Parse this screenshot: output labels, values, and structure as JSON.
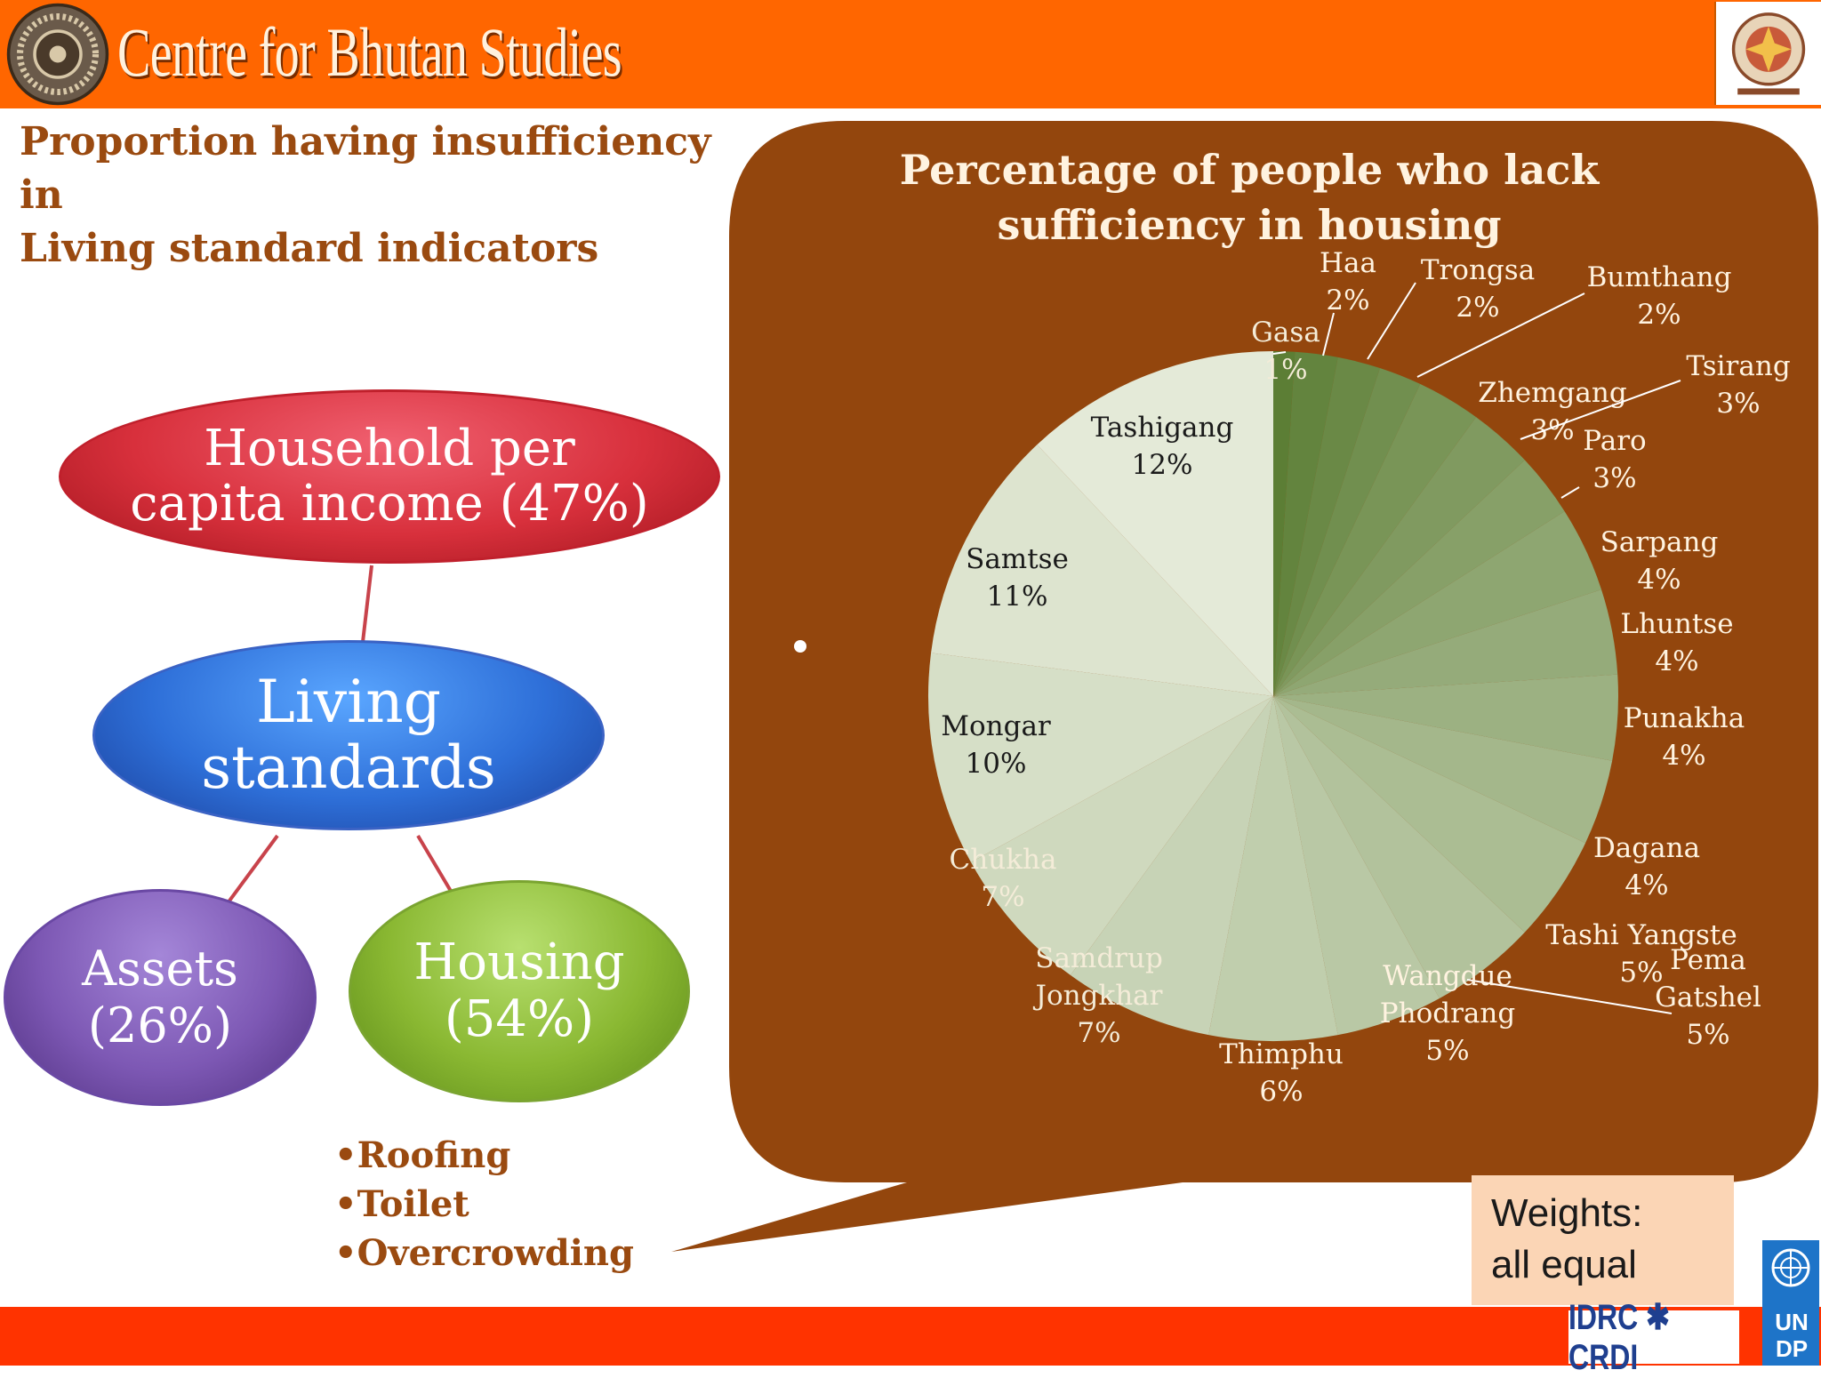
{
  "header": {
    "brand": "Centre for Bhutan Studies",
    "bar_color": "#ff6600",
    "logo_icon": "dharma-wheel-icon",
    "emblem_icon": "bhutan-emblem-icon"
  },
  "heading": {
    "line1": "Proportion having insufficiency in",
    "line2": "Living standard indicators"
  },
  "hierarchy": {
    "income": {
      "line1": "Household per",
      "line2": "capita income (47%)"
    },
    "living": {
      "line1": "Living",
      "line2": "standards"
    },
    "assets": {
      "line1": "Assets",
      "line2": "(26%)"
    },
    "housing": {
      "line1": "Housing",
      "line2": "(54%)"
    }
  },
  "housing_items": [
    "•Roofing",
    "•Toilet",
    "•Overcrowding"
  ],
  "bullet": "•",
  "weights": {
    "line1": "Weights:",
    "line2": "all equal"
  },
  "sponsors": {
    "idrc": "IDRC ✱ CRDI",
    "undp": [
      "U",
      "N",
      "D",
      "P"
    ]
  },
  "colors": {
    "bubble": "#93460d",
    "accent": "#9a4a10",
    "bottom_bar": "#ff3300"
  },
  "chart_data": {
    "type": "pie",
    "title": "Percentage of people who lack sufficiency in housing",
    "title_lines": [
      "Percentage of people who lack",
      "sufficiency in housing"
    ],
    "legend": "none",
    "slices": [
      {
        "name": "Gasa",
        "value": 1,
        "label": "1%"
      },
      {
        "name": "Haa",
        "value": 2,
        "label": "2%"
      },
      {
        "name": "Trongsa",
        "value": 2,
        "label": "2%"
      },
      {
        "name": "Bumthang",
        "value": 2,
        "label": "2%"
      },
      {
        "name": "Zhemgang",
        "value": 3,
        "label": "3%"
      },
      {
        "name": "Tsirang",
        "value": 3,
        "label": "3%"
      },
      {
        "name": "Paro",
        "value": 3,
        "label": "3%"
      },
      {
        "name": "Sarpang",
        "value": 4,
        "label": "4%"
      },
      {
        "name": "Lhuntse",
        "value": 4,
        "label": "4%"
      },
      {
        "name": "Punakha",
        "value": 4,
        "label": "4%"
      },
      {
        "name": "Dagana",
        "value": 4,
        "label": "4%"
      },
      {
        "name": "Tashi Yangste",
        "value": 5,
        "label": "5%"
      },
      {
        "name": "Pema Gatshel",
        "value": 5,
        "label": "5%"
      },
      {
        "name": "Wangdue Phodrang",
        "value": 5,
        "label": "5%"
      },
      {
        "name": "Thimphu",
        "value": 6,
        "label": "6%"
      },
      {
        "name": "Samdrup Jongkhar",
        "value": 7,
        "label": "7%"
      },
      {
        "name": "Chukha",
        "value": 7,
        "label": "7%"
      },
      {
        "name": "Mongar",
        "value": 10,
        "label": "10%"
      },
      {
        "name": "Samtse",
        "value": 11,
        "label": "11%"
      },
      {
        "name": "Tashigang",
        "value": 12,
        "label": "12%"
      }
    ],
    "color_start": "#5c7e35",
    "color_end": "#e4ead8"
  }
}
